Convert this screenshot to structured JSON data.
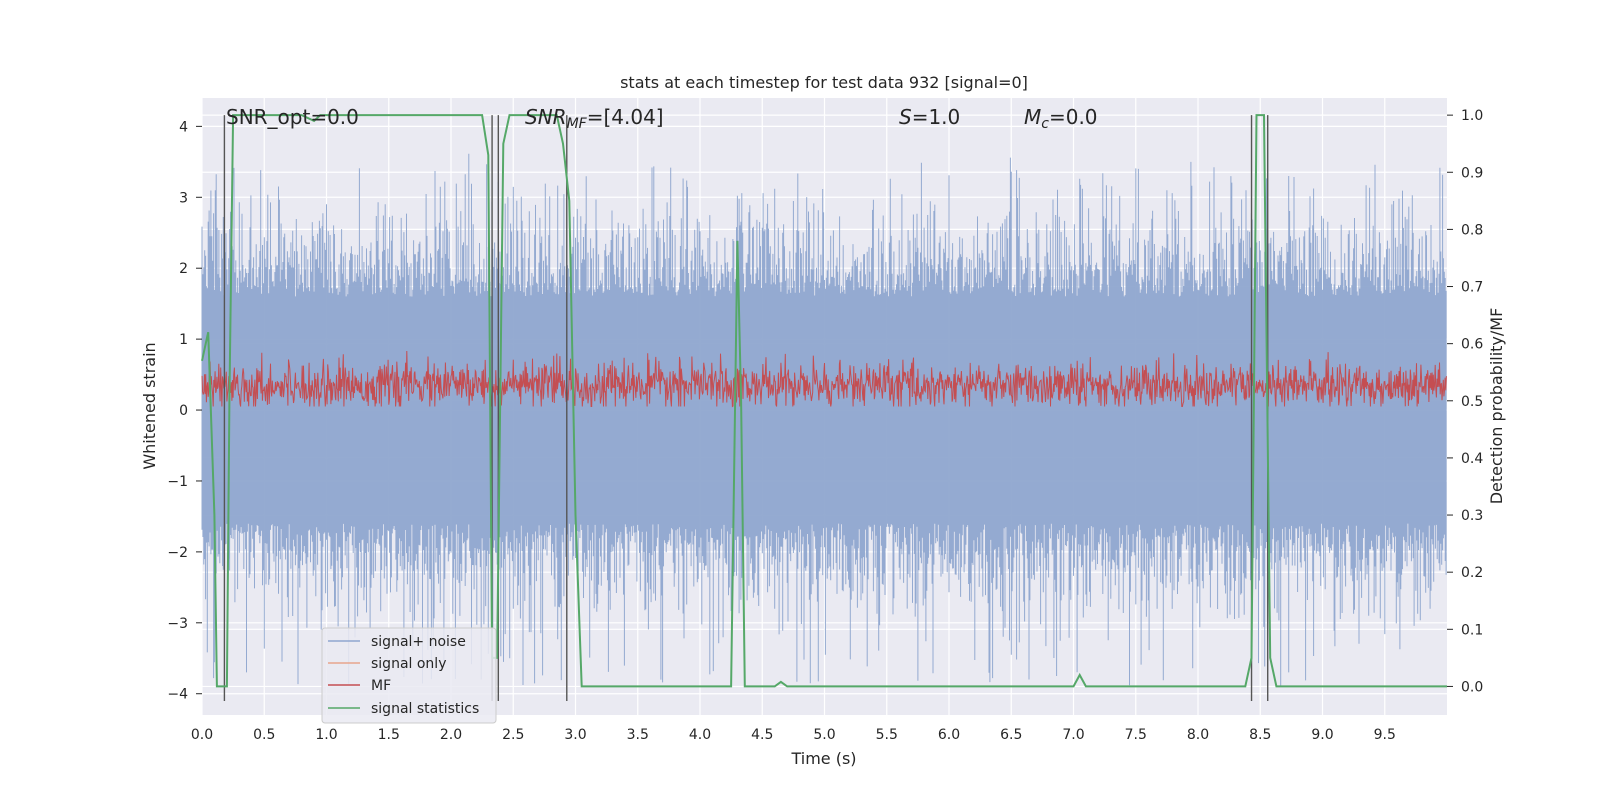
{
  "chart_data": {
    "type": "line",
    "title": "stats at each timestep for test data 932 [signal=0]",
    "xlabel": "Time (s)",
    "ylabel": "Whitened strain",
    "ylabel_right": "Detection probability/MF",
    "xlim": [
      0.0,
      10.0
    ],
    "ylim": [
      -4.3,
      4.4
    ],
    "ylim_right": [
      -0.05,
      1.03
    ],
    "x_ticks": [
      "0.0",
      "0.5",
      "1.0",
      "1.5",
      "2.0",
      "2.5",
      "3.0",
      "3.5",
      "4.0",
      "4.5",
      "5.0",
      "5.5",
      "6.0",
      "6.5",
      "7.0",
      "7.5",
      "8.0",
      "8.5",
      "9.0",
      "9.5"
    ],
    "y_ticks": [
      "4",
      "3",
      "2",
      "1",
      "0",
      "−1",
      "−2",
      "−3",
      "−4"
    ],
    "y_ticks_right": [
      "1.0",
      "0.9",
      "0.8",
      "0.7",
      "0.6",
      "0.5",
      "0.4",
      "0.3",
      "0.2",
      "0.1",
      "0.0"
    ],
    "grid": true,
    "legend_position": "lower-left",
    "annotations": {
      "snr_opt": "SNR_opt=0.0",
      "snr_mf_sym": "SNR",
      "snr_mf_sub": "MF",
      "snr_mf_val": "=[4.04]",
      "s_sym": "S",
      "s_val": "=1.0",
      "mc_sym": "M",
      "mc_sub": "c",
      "mc_val": "=0.0"
    },
    "series": [
      {
        "name": "signal+ noise",
        "color": "#8fa6cf",
        "amplitude_range": [
          -3.9,
          3.5
        ]
      },
      {
        "name": "signal only",
        "color": "#e8a58c",
        "values": []
      },
      {
        "name": "MF",
        "color": "#c44e52",
        "amplitude_range": [
          0.05,
          1.0
        ]
      },
      {
        "name": "signal statistics",
        "color": "#55a868",
        "axis": "right",
        "x": [
          0.0,
          0.05,
          0.1,
          0.12,
          0.15,
          0.2,
          0.22,
          0.25,
          0.3,
          0.8,
          0.9,
          0.95,
          1.0,
          2.25,
          2.3,
          2.33,
          2.37,
          2.42,
          2.47,
          2.5,
          2.85,
          2.9,
          2.95,
          3.0,
          3.05,
          4.25,
          4.3,
          4.33,
          4.36,
          4.4,
          4.6,
          4.65,
          4.7,
          7.0,
          7.05,
          7.1,
          8.38,
          8.43,
          8.47,
          8.53,
          8.58,
          8.63,
          8.7,
          10.0
        ],
        "values": [
          0.57,
          0.62,
          0.3,
          0.0,
          0.0,
          0.0,
          0.5,
          1.0,
          1.0,
          1.0,
          0.99,
          1.0,
          1.0,
          1.0,
          0.93,
          0.05,
          0.05,
          0.95,
          1.0,
          1.0,
          1.0,
          0.95,
          0.85,
          0.3,
          0.0,
          0.0,
          0.78,
          0.5,
          0.0,
          0.0,
          0.0,
          0.008,
          0.0,
          0.0,
          0.02,
          0.0,
          0.0,
          0.05,
          1.0,
          1.0,
          0.05,
          0.0,
          0.0,
          0.0
        ]
      }
    ],
    "vertical_markers": [
      {
        "x": 0.18,
        "y_range": [
          -0.05,
          1.0
        ]
      },
      {
        "x": 2.33,
        "y_range": [
          -0.05,
          1.0
        ]
      },
      {
        "x": 2.38,
        "y_range": [
          -0.05,
          1.0
        ]
      },
      {
        "x": 2.93,
        "y_range": [
          -0.05,
          1.0
        ]
      },
      {
        "x": 8.43,
        "y_range": [
          -0.05,
          1.0
        ]
      },
      {
        "x": 8.56,
        "y_range": [
          -0.05,
          1.0
        ]
      }
    ]
  }
}
